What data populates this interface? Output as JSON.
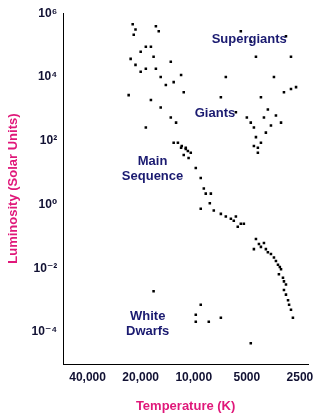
{
  "chart_data": {
    "type": "scatter",
    "x_label": "Temperature (K)",
    "y_label": "Luminosity (Solar Units)",
    "log": true,
    "grid": false,
    "color": "#000000",
    "marker": "square",
    "xlim": [
      55000,
      2250
    ],
    "ylim": [
      1e-05,
      1000000
    ],
    "xticks": [
      {
        "value": 40000,
        "label": "40,000"
      },
      {
        "value": 20000,
        "label": "20,000"
      },
      {
        "value": 10000,
        "label": "10,000"
      },
      5000,
      2500
    ],
    "yticks": [
      {
        "value": 0.0001,
        "label": "10⁻⁴"
      },
      {
        "value": 0.01,
        "label": "10⁻²"
      },
      {
        "value": 1,
        "label": "10⁰"
      },
      {
        "value": 100,
        "label": "10²"
      },
      {
        "value": 10000,
        "label": "10⁴"
      },
      {
        "value": 1000000,
        "label": "10⁶"
      }
    ],
    "annotations": [
      "Supergiants",
      "Giants",
      "Main Sequence",
      "White Dwarfs"
    ],
    "x": [
      22200,
      21400,
      21900,
      16400,
      15800,
      20000,
      18700,
      17500,
      16900,
      22800,
      21400,
      20000,
      23400,
      18700,
      16400,
      15400,
      13500,
      13000,
      14400,
      11800,
      11400,
      17500,
      15400,
      18700,
      13500,
      12600,
      11800,
      11100,
      13000,
      12300,
      11700,
      11100,
      10800,
      10400,
      11400,
      10700,
      9740,
      9130,
      8770,
      8550,
      8110,
      7700,
      9130,
      8000,
      7020,
      6580,
      6160,
      5930,
      5770,
      5410,
      5630,
      5200,
      4440,
      4270,
      4160,
      4000,
      3900,
      3800,
      3650,
      3510,
      3420,
      3330,
      3250,
      3200,
      3290,
      3120,
      3080,
      3000,
      3080,
      3000,
      2920,
      2880,
      2810,
      2740,
      4560,
      7020,
      5000,
      4750,
      4560,
      4440,
      4160,
      4330,
      3900,
      3650,
      4000,
      3800,
      3420,
      3200,
      4160,
      3080,
      2810,
      2630,
      3510,
      4440,
      4750,
      5410,
      3000,
      2810,
      6580,
      5770,
      4560,
      4330,
      16900,
      9130,
      9740,
      9740,
      8220,
      7020,
      4750
    ],
    "values": [
      450000,
      310000,
      210000,
      390000,
      270000,
      62000,
      89000,
      89000,
      43000,
      37000,
      24000,
      14500,
      2700,
      18000,
      18000,
      10000,
      30000,
      6900,
      5600,
      11500,
      3300,
      1900,
      1100,
      260,
      540,
      370,
      60,
      60,
      87,
      87,
      69,
      55,
      48,
      42,
      36,
      29,
      14,
      6.8,
      3.2,
      2.2,
      1.1,
      0.65,
      0.74,
      2.2,
      0.51,
      0.42,
      0.36,
      0.31,
      0.42,
      0.25,
      0.2,
      0.25,
      0.083,
      0.058,
      0.047,
      0.062,
      0.04,
      0.032,
      0.028,
      0.022,
      0.017,
      0.013,
      0.011,
      0.0093,
      0.0065,
      0.0051,
      0.0039,
      0.0031,
      0.0021,
      0.0015,
      0.001,
      0.00072,
      0.0005,
      0.00028,
      0.04,
      2300,
      540,
      370,
      260,
      130,
      87,
      60,
      180,
      300,
      540,
      950,
      620,
      370,
      2300,
      3300,
      4200,
      4800,
      10000,
      43000,
      130000,
      270000,
      190000,
      43000,
      10000,
      780,
      69,
      42,
      0.0019,
      0.00072,
      0.00035,
      0.00021,
      0.00021,
      0.00028,
      4.5e-05
    ]
  }
}
